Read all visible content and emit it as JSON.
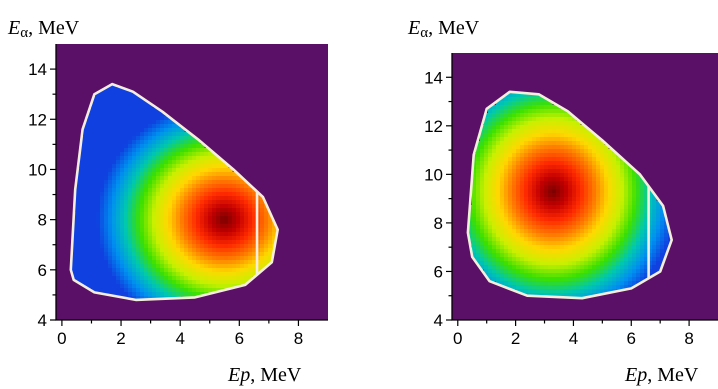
{
  "chart_data": [
    {
      "type": "heatmap",
      "title": "",
      "ylabel_symbol": "E",
      "ylabel_subscript": "α",
      "ylabel_unit": ", MeV",
      "xlabel_symbol": "Ep",
      "xlabel_unit": ", MeV",
      "xlim": [
        -0.2,
        9
      ],
      "ylim": [
        4,
        15
      ],
      "xticks": [
        0,
        2,
        4,
        6,
        8
      ],
      "yticks": [
        4,
        6,
        8,
        10,
        12,
        14
      ],
      "background_color": "#5a1066",
      "boundary_color": "#f6eedd",
      "colorscale": [
        "#7a0000",
        "#c40000",
        "#ff2a00",
        "#ff7a00",
        "#ffd800",
        "#c8f000",
        "#3ce000",
        "#00c8b0",
        "#0090f0",
        "#1040e0"
      ],
      "boundary": [
        [
          0.3,
          6.0
        ],
        [
          0.45,
          9.2
        ],
        [
          0.7,
          11.6
        ],
        [
          1.1,
          13.0
        ],
        [
          1.7,
          13.4
        ],
        [
          2.4,
          13.1
        ],
        [
          3.4,
          12.3
        ],
        [
          4.6,
          11.2
        ],
        [
          5.8,
          10.0
        ],
        [
          6.8,
          8.9
        ],
        [
          7.3,
          7.6
        ],
        [
          7.1,
          6.3
        ],
        [
          6.2,
          5.4
        ],
        [
          4.5,
          4.9
        ],
        [
          2.5,
          4.8
        ],
        [
          1.1,
          5.1
        ],
        [
          0.4,
          5.6
        ]
      ],
      "cut_x": 6.6,
      "peak": [
        5.5,
        8.0
      ],
      "spread": [
        4.3,
        4.7
      ]
    },
    {
      "type": "heatmap",
      "title": "",
      "ylabel_symbol": "E",
      "ylabel_subscript": "α",
      "ylabel_unit": ", MeV",
      "xlabel_symbol": "Ep",
      "xlabel_unit": ", MeV",
      "xlim": [
        -0.2,
        9
      ],
      "ylim": [
        4,
        15
      ],
      "xticks": [
        0,
        2,
        4,
        6,
        8
      ],
      "yticks": [
        4,
        6,
        8,
        10,
        12,
        14
      ],
      "background_color": "#5a1066",
      "boundary_color": "#f6eedd",
      "colorscale": [
        "#7a0000",
        "#c40000",
        "#ff2a00",
        "#ff7a00",
        "#ffd800",
        "#c8f000",
        "#3ce000",
        "#00c8b0",
        "#0090f0",
        "#1040e0"
      ],
      "boundary": [
        [
          0.35,
          7.6
        ],
        [
          0.55,
          10.8
        ],
        [
          1.0,
          12.7
        ],
        [
          1.8,
          13.4
        ],
        [
          2.8,
          13.3
        ],
        [
          3.8,
          12.6
        ],
        [
          5.0,
          11.4
        ],
        [
          6.3,
          10.0
        ],
        [
          7.1,
          8.7
        ],
        [
          7.4,
          7.3
        ],
        [
          7.0,
          6.0
        ],
        [
          6.0,
          5.3
        ],
        [
          4.3,
          4.9
        ],
        [
          2.4,
          5.0
        ],
        [
          1.1,
          5.6
        ],
        [
          0.5,
          6.6
        ]
      ],
      "cut_x": 6.6,
      "peak": [
        3.3,
        9.3
      ],
      "spread": [
        4.3,
        5.4
      ]
    }
  ]
}
